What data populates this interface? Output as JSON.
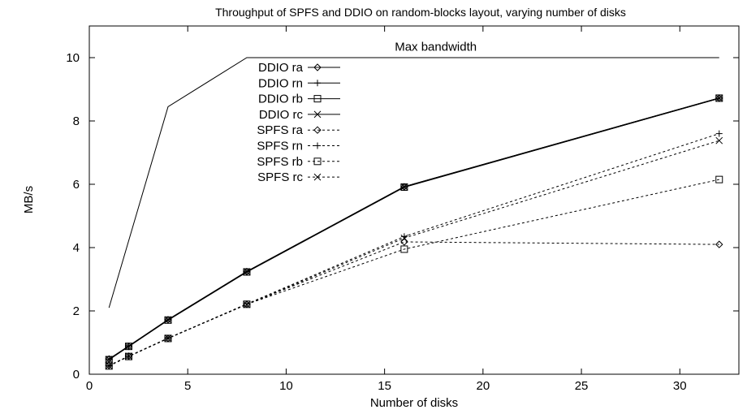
{
  "chart_data": {
    "type": "line",
    "title": "Throughput of SPFS and DDIO on random-blocks layout, varying number of disks",
    "xlabel": "Number of disks",
    "ylabel": "MB/s",
    "xlim": [
      0,
      33
    ],
    "ylim": [
      0,
      11
    ],
    "xticks": [
      0,
      5,
      10,
      15,
      20,
      25,
      30
    ],
    "yticks": [
      0,
      2,
      4,
      6,
      8,
      10
    ],
    "grid": false,
    "legend_position": "upper-left-center",
    "annotations": [
      {
        "text": "Max bandwidth",
        "x": 17.6,
        "y": 10.35
      }
    ],
    "reference_line": {
      "name": "Max bandwidth",
      "x": [
        1,
        4,
        8,
        32
      ],
      "y": [
        2.1,
        8.45,
        10.0,
        10.0
      ]
    },
    "series": [
      {
        "name": "DDIO ra",
        "marker": "diamond",
        "dash": "solid",
        "x": [
          1,
          2,
          4,
          8,
          16,
          32
        ],
        "y": [
          0.48,
          0.88,
          1.72,
          3.24,
          5.92,
          8.72
        ]
      },
      {
        "name": "DDIO rn",
        "marker": "plus",
        "dash": "solid",
        "x": [
          1,
          2,
          4,
          8,
          16,
          32
        ],
        "y": [
          0.47,
          0.89,
          1.72,
          3.24,
          5.92,
          8.72
        ]
      },
      {
        "name": "DDIO rb",
        "marker": "square",
        "dash": "solid",
        "x": [
          1,
          2,
          4,
          8,
          16,
          32
        ],
        "y": [
          0.46,
          0.88,
          1.71,
          3.23,
          5.91,
          8.72
        ]
      },
      {
        "name": "DDIO rc",
        "marker": "cross",
        "dash": "solid",
        "x": [
          1,
          2,
          4,
          8,
          16,
          32
        ],
        "y": [
          0.47,
          0.88,
          1.72,
          3.24,
          5.92,
          8.72
        ]
      },
      {
        "name": "SPFS ra",
        "marker": "diamond",
        "dash": "dashed",
        "x": [
          1,
          2,
          4,
          8,
          16,
          32
        ],
        "y": [
          0.28,
          0.57,
          1.13,
          2.21,
          4.18,
          4.1
        ]
      },
      {
        "name": "SPFS rn",
        "marker": "plus",
        "dash": "dashed",
        "x": [
          1,
          2,
          4,
          8,
          16,
          32
        ],
        "y": [
          0.27,
          0.56,
          1.14,
          2.22,
          4.35,
          7.6
        ]
      },
      {
        "name": "SPFS rb",
        "marker": "square",
        "dash": "dashed",
        "x": [
          1,
          2,
          4,
          8,
          16,
          32
        ],
        "y": [
          0.26,
          0.56,
          1.13,
          2.21,
          3.95,
          6.15
        ]
      },
      {
        "name": "SPFS rc",
        "marker": "cross",
        "dash": "dashed",
        "x": [
          1,
          2,
          4,
          8,
          16,
          32
        ],
        "y": [
          0.27,
          0.57,
          1.14,
          2.2,
          4.3,
          7.38
        ]
      }
    ]
  }
}
